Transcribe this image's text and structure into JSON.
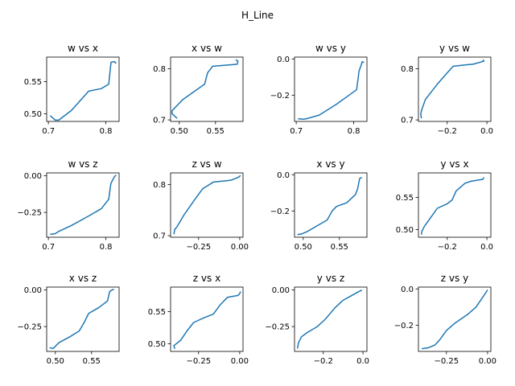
{
  "figure": {
    "suptitle": "H_Line"
  },
  "colors": {
    "line": "#1f77b4",
    "axes": "#000000",
    "background": "#ffffff"
  },
  "chart_data": [
    {
      "type": "line",
      "title": "w vs x",
      "xlim": [
        0.697,
        0.823
      ],
      "ylim": [
        0.488,
        0.588
      ],
      "xticks": [
        0.7,
        0.8
      ],
      "xtick_labels": [
        "0.7",
        "0.8"
      ],
      "yticks": [
        0.5,
        0.55
      ],
      "ytick_labels": [
        "0.50",
        "0.55"
      ],
      "series": [
        {
          "x": [
            0.703,
            0.712,
            0.718,
            0.74,
            0.77,
            0.792,
            0.805,
            0.808,
            0.809,
            0.815,
            0.818
          ],
          "y": [
            0.497,
            0.49,
            0.49,
            0.505,
            0.535,
            0.539,
            0.546,
            0.572,
            0.58,
            0.581,
            0.578
          ]
        }
      ]
    },
    {
      "type": "line",
      "title": "x vs w",
      "xlim": [
        0.488,
        0.588
      ],
      "ylim": [
        0.697,
        0.823
      ],
      "xticks": [
        0.5,
        0.55
      ],
      "xtick_labels": [
        "0.50",
        "0.55"
      ],
      "yticks": [
        0.7,
        0.8
      ],
      "ytick_labels": [
        "0.7",
        "0.8"
      ],
      "series": [
        {
          "x": [
            0.497,
            0.49,
            0.49,
            0.505,
            0.535,
            0.539,
            0.546,
            0.572,
            0.58,
            0.581,
            0.578
          ],
          "y": [
            0.703,
            0.712,
            0.718,
            0.74,
            0.77,
            0.792,
            0.805,
            0.808,
            0.809,
            0.815,
            0.818
          ]
        }
      ]
    },
    {
      "type": "line",
      "title": "w vs y",
      "xlim": [
        0.697,
        0.823
      ],
      "ylim": [
        -0.345,
        0.01
      ],
      "xticks": [
        0.7,
        0.8
      ],
      "xtick_labels": [
        "0.7",
        "0.8"
      ],
      "yticks": [
        0.0,
        -0.2
      ],
      "ytick_labels": [
        "0.0",
        "−0.2"
      ],
      "series": [
        {
          "x": [
            0.703,
            0.712,
            0.718,
            0.74,
            0.77,
            0.792,
            0.805,
            0.808,
            0.809,
            0.815,
            0.818
          ],
          "y": [
            -0.33,
            -0.333,
            -0.33,
            -0.31,
            -0.25,
            -0.2,
            -0.17,
            -0.1,
            -0.07,
            -0.015,
            -0.02
          ]
        }
      ]
    },
    {
      "type": "line",
      "title": "y vs w",
      "xlim": [
        -0.345,
        0.02
      ],
      "ylim": [
        0.697,
        0.823
      ],
      "xticks": [
        -0.2,
        0.0
      ],
      "xtick_labels": [
        "−0.2",
        "0.0"
      ],
      "yticks": [
        0.7,
        0.8
      ],
      "ytick_labels": [
        "0.7",
        "0.8"
      ],
      "series": [
        {
          "x": [
            -0.33,
            -0.333,
            -0.33,
            -0.31,
            -0.25,
            -0.2,
            -0.17,
            -0.1,
            -0.07,
            -0.015,
            -0.02
          ],
          "y": [
            0.703,
            0.712,
            0.718,
            0.74,
            0.77,
            0.792,
            0.805,
            0.808,
            0.809,
            0.815,
            0.818
          ]
        }
      ]
    },
    {
      "type": "line",
      "title": "w vs z",
      "xlim": [
        0.697,
        0.823
      ],
      "ylim": [
        -0.42,
        0.02
      ],
      "xticks": [
        0.7,
        0.8
      ],
      "xtick_labels": [
        "0.7",
        "0.8"
      ],
      "yticks": [
        0.0,
        -0.25
      ],
      "ytick_labels": [
        "0.00",
        "−0.25"
      ],
      "series": [
        {
          "x": [
            0.703,
            0.712,
            0.718,
            0.74,
            0.77,
            0.792,
            0.805,
            0.808,
            0.809,
            0.815,
            0.818
          ],
          "y": [
            -0.4,
            -0.395,
            -0.38,
            -0.34,
            -0.275,
            -0.225,
            -0.16,
            -0.07,
            -0.05,
            -0.005,
            0.005
          ]
        }
      ]
    },
    {
      "type": "line",
      "title": "z vs w",
      "xlim": [
        -0.42,
        0.02
      ],
      "ylim": [
        0.697,
        0.823
      ],
      "xticks": [
        -0.25,
        0.0
      ],
      "xtick_labels": [
        "−0.25",
        "0.00"
      ],
      "yticks": [
        0.7,
        0.8
      ],
      "ytick_labels": [
        "0.7",
        "0.8"
      ],
      "series": [
        {
          "x": [
            -0.4,
            -0.395,
            -0.38,
            -0.34,
            -0.275,
            -0.225,
            -0.16,
            -0.07,
            -0.05,
            -0.005,
            0.005
          ],
          "y": [
            0.703,
            0.712,
            0.718,
            0.74,
            0.77,
            0.792,
            0.805,
            0.808,
            0.809,
            0.815,
            0.818
          ]
        }
      ]
    },
    {
      "type": "line",
      "title": "x vs y",
      "xlim": [
        0.488,
        0.588
      ],
      "ylim": [
        -0.345,
        0.01
      ],
      "xticks": [
        0.5,
        0.55
      ],
      "xtick_labels": [
        "0.50",
        "0.55"
      ],
      "yticks": [
        0.0,
        -0.2
      ],
      "ytick_labels": [
        "0.0",
        "−0.2"
      ],
      "series": [
        {
          "x": [
            0.492,
            0.497,
            0.505,
            0.52,
            0.533,
            0.54,
            0.546,
            0.56,
            0.572,
            0.575,
            0.578,
            0.581
          ],
          "y": [
            -0.33,
            -0.328,
            -0.315,
            -0.28,
            -0.25,
            -0.2,
            -0.175,
            -0.155,
            -0.11,
            -0.08,
            -0.02,
            -0.015
          ]
        }
      ]
    },
    {
      "type": "line",
      "title": "y vs x",
      "xlim": [
        -0.345,
        0.02
      ],
      "ylim": [
        0.488,
        0.588
      ],
      "xticks": [
        -0.2,
        0.0
      ],
      "xtick_labels": [
        "−0.2",
        "0.0"
      ],
      "yticks": [
        0.5,
        0.55
      ],
      "ytick_labels": [
        "0.50",
        "0.55"
      ],
      "series": [
        {
          "x": [
            -0.33,
            -0.328,
            -0.315,
            -0.28,
            -0.25,
            -0.2,
            -0.175,
            -0.155,
            -0.11,
            -0.08,
            -0.02,
            -0.015
          ],
          "y": [
            0.492,
            0.497,
            0.505,
            0.52,
            0.533,
            0.54,
            0.546,
            0.56,
            0.572,
            0.575,
            0.578,
            0.581
          ]
        }
      ]
    },
    {
      "type": "line",
      "title": "x vs z",
      "xlim": [
        0.488,
        0.588
      ],
      "ylim": [
        -0.42,
        0.02
      ],
      "xticks": [
        0.5,
        0.55
      ],
      "xtick_labels": [
        "0.50",
        "0.55"
      ],
      "yticks": [
        0.0,
        -0.25
      ],
      "ytick_labels": [
        "0.00",
        "−0.25"
      ],
      "series": [
        {
          "x": [
            0.492,
            0.497,
            0.505,
            0.52,
            0.533,
            0.54,
            0.546,
            0.56,
            0.572,
            0.575,
            0.578,
            0.581
          ],
          "y": [
            -0.395,
            -0.4,
            -0.36,
            -0.32,
            -0.28,
            -0.22,
            -0.16,
            -0.12,
            -0.075,
            -0.01,
            0.0,
            0.005
          ]
        }
      ]
    },
    {
      "type": "line",
      "title": "z vs x",
      "xlim": [
        -0.42,
        0.02
      ],
      "ylim": [
        0.488,
        0.588
      ],
      "xticks": [
        -0.25,
        0.0
      ],
      "xtick_labels": [
        "−0.25",
        "0.00"
      ],
      "yticks": [
        0.5,
        0.55
      ],
      "ytick_labels": [
        "0.50",
        "0.55"
      ],
      "series": [
        {
          "x": [
            -0.395,
            -0.4,
            -0.36,
            -0.32,
            -0.28,
            -0.22,
            -0.16,
            -0.12,
            -0.075,
            -0.01,
            0.0,
            0.005
          ],
          "y": [
            0.492,
            0.497,
            0.505,
            0.52,
            0.533,
            0.54,
            0.546,
            0.56,
            0.572,
            0.575,
            0.578,
            0.581
          ]
        }
      ]
    },
    {
      "type": "line",
      "title": "y vs z",
      "xlim": [
        -0.345,
        0.02
      ],
      "ylim": [
        -0.42,
        0.02
      ],
      "xticks": [
        -0.2,
        0.0
      ],
      "xtick_labels": [
        "−0.2",
        "0.0"
      ],
      "yticks": [
        0.0,
        -0.25
      ],
      "ytick_labels": [
        "0.00",
        "−0.25"
      ],
      "series": [
        {
          "x": [
            -0.33,
            -0.325,
            -0.31,
            -0.28,
            -0.23,
            -0.19,
            -0.14,
            -0.1,
            -0.06,
            -0.02,
            -0.005
          ],
          "y": [
            -0.4,
            -0.36,
            -0.32,
            -0.29,
            -0.25,
            -0.2,
            -0.12,
            -0.07,
            -0.04,
            -0.01,
            0.0
          ]
        }
      ]
    },
    {
      "type": "line",
      "title": "z vs y",
      "xlim": [
        -0.42,
        0.02
      ],
      "ylim": [
        -0.345,
        0.01
      ],
      "xticks": [
        -0.25,
        0.0
      ],
      "xtick_labels": [
        "−0.25",
        "0.00"
      ],
      "yticks": [
        0.0,
        -0.2
      ],
      "ytick_labels": [
        "0.0",
        "−0.2"
      ],
      "series": [
        {
          "x": [
            -0.4,
            -0.36,
            -0.32,
            -0.29,
            -0.25,
            -0.2,
            -0.12,
            -0.07,
            -0.04,
            -0.01,
            0.0
          ],
          "y": [
            -0.33,
            -0.325,
            -0.31,
            -0.28,
            -0.23,
            -0.19,
            -0.14,
            -0.1,
            -0.06,
            -0.02,
            -0.005
          ]
        }
      ]
    }
  ]
}
